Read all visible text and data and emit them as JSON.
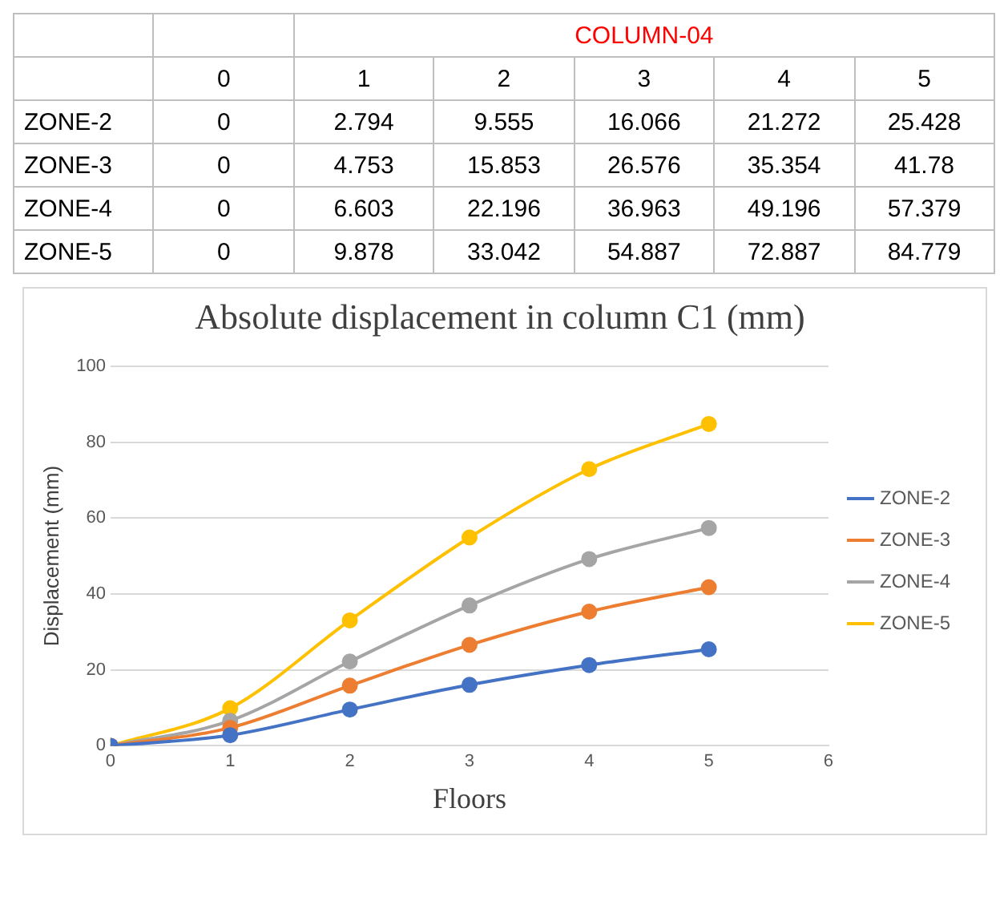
{
  "chart_data": [
    {
      "type": "heatmap",
      "xlabel": "COLUMN-04",
      "categories": [
        "0",
        "1",
        "2",
        "3",
        "4",
        "5"
      ],
      "y_categories": [
        "ZONE-2",
        "ZONE-3",
        "ZONE-4",
        "ZONE-5"
      ],
      "cells": [
        [
          0,
          2.794,
          9.555,
          16.066,
          21.272,
          25.428
        ],
        [
          0,
          4.753,
          15.853,
          26.576,
          35.354,
          41.78
        ],
        [
          0,
          6.603,
          22.196,
          36.963,
          49.196,
          57.379
        ],
        [
          0,
          9.878,
          33.042,
          54.887,
          72.887,
          84.779
        ]
      ],
      "data_labels": true
    },
    {
      "type": "line",
      "title": "Absolute displacement in column C1 (mm)",
      "xlabel": "Floors",
      "ylabel": "Displacement (mm)",
      "x": [
        0,
        1,
        2,
        3,
        4,
        5
      ],
      "series": [
        {
          "name": "ZONE-2",
          "color": "#4472c4",
          "values": [
            0,
            2.794,
            9.555,
            16.066,
            21.272,
            25.428
          ]
        },
        {
          "name": "ZONE-3",
          "color": "#ed7d31",
          "values": [
            0,
            4.753,
            15.853,
            26.576,
            35.354,
            41.78
          ]
        },
        {
          "name": "ZONE-4",
          "color": "#a5a5a5",
          "values": [
            0,
            6.603,
            22.196,
            36.963,
            49.196,
            57.379
          ]
        },
        {
          "name": "ZONE-5",
          "color": "#ffc000",
          "values": [
            0,
            9.878,
            33.042,
            54.887,
            72.887,
            84.779
          ]
        }
      ],
      "xlim": [
        0,
        6
      ],
      "xticks": [
        0,
        1,
        2,
        3,
        4,
        5,
        6
      ],
      "ylim": [
        0,
        100
      ],
      "yticks": [
        0,
        20,
        40,
        60,
        80,
        100
      ],
      "grid": "y",
      "legend": "right",
      "marker": "circle"
    }
  ]
}
